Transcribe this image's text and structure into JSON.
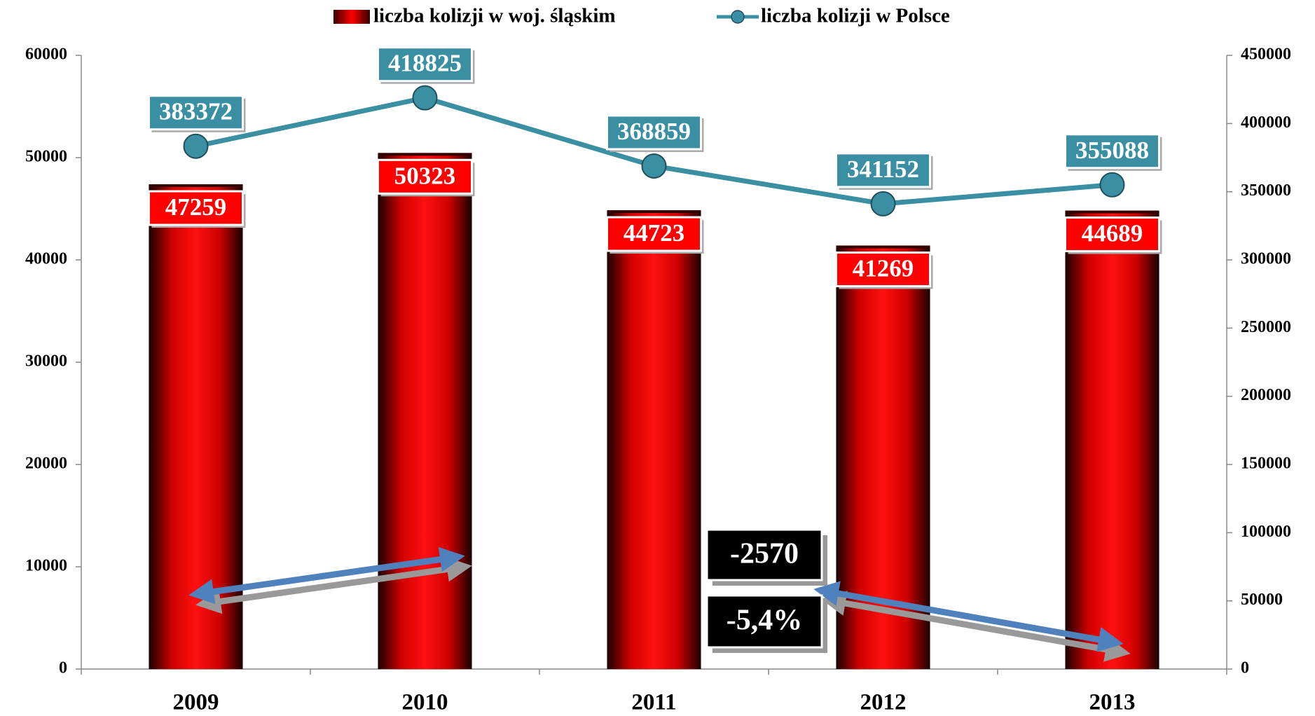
{
  "chart_data": {
    "type": "bar_line",
    "categories": [
      "2009",
      "2010",
      "2011",
      "2012",
      "2013"
    ],
    "series": [
      {
        "name": "liczba kolizji w woj. śląskim",
        "color": "#ff0000",
        "type": "bar",
        "values": [
          47259,
          50323,
          44723,
          41269,
          44689
        ]
      },
      {
        "name": "liczba kolizji w Polsce",
        "color": "#3b8fa2",
        "type": "line",
        "axis": "y2",
        "values": [
          383372,
          418825,
          368859,
          341152,
          355088
        ]
      }
    ],
    "ylim": [
      0,
      60000
    ],
    "yticks": [
      0,
      10000,
      20000,
      30000,
      40000,
      50000,
      60000
    ],
    "y2lim": [
      0,
      450000
    ],
    "y2ticks": [
      0,
      50000,
      100000,
      150000,
      200000,
      250000,
      300000,
      350000,
      400000,
      450000
    ],
    "grid": false,
    "legend": "top",
    "annotations": [
      "-2570",
      "-5,4%"
    ]
  }
}
